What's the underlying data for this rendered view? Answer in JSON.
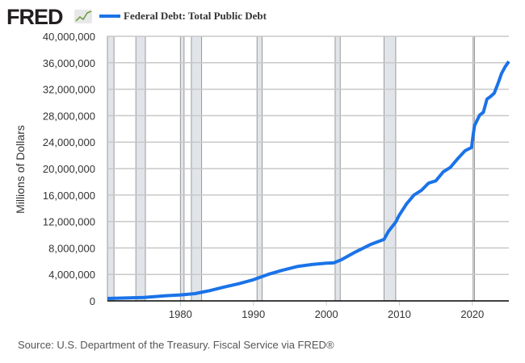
{
  "brand": {
    "logo_text": "FRED"
  },
  "chart_data": {
    "type": "line",
    "title": "Federal Debt: Total Public Debt",
    "legend": [
      {
        "label": "Federal Debt: Total Public Debt",
        "color": "#1a73e8"
      }
    ],
    "legend_placement": "top-left",
    "ylabel": "Millions of Dollars",
    "xlabel": "",
    "xlim": [
      1970,
      2025
    ],
    "ylim": [
      0,
      40000000
    ],
    "grid": true,
    "yticks": [
      0,
      4000000,
      8000000,
      12000000,
      16000000,
      20000000,
      24000000,
      28000000,
      32000000,
      36000000,
      40000000
    ],
    "ytick_labels": [
      "0",
      "4,000,000",
      "8,000,000",
      "12,000,000",
      "16,000,000",
      "20,000,000",
      "24,000,000",
      "28,000,000",
      "32,000,000",
      "36,000,000",
      "40,000,000"
    ],
    "xticks": [
      1980,
      1990,
      2000,
      2010,
      2020
    ],
    "xtick_labels": [
      "1980",
      "1990",
      "2000",
      "2010",
      "2020"
    ],
    "recessions": [
      [
        1969.9,
        1970.9
      ],
      [
        1973.9,
        1975.2
      ],
      [
        1980.0,
        1980.5
      ],
      [
        1981.5,
        1982.9
      ],
      [
        1990.5,
        1991.2
      ],
      [
        2001.2,
        2001.9
      ],
      [
        2007.9,
        2009.5
      ],
      [
        2020.1,
        2020.3
      ]
    ],
    "series": [
      {
        "name": "Federal Debt: Total Public Debt",
        "color": "#1a73e8",
        "x": [
          1970,
          1972,
          1975,
          1978,
          1980,
          1982,
          1984,
          1986,
          1988,
          1990,
          1992,
          1994,
          1996,
          1998,
          2000,
          2001,
          2002,
          2004,
          2006,
          2007.9,
          2008.5,
          2009.5,
          2010,
          2011,
          2012,
          2013,
          2014,
          2015,
          2016,
          2017,
          2018,
          2019,
          2019.9,
          2020.1,
          2020.3,
          2021,
          2021.5,
          2022,
          2022.5,
          2023,
          2023.5,
          2024,
          2024.5,
          2025
        ],
        "y": [
          370000,
          430000,
          530000,
          780000,
          900000,
          1100000,
          1550000,
          2100000,
          2600000,
          3200000,
          4000000,
          4650000,
          5200000,
          5500000,
          5700000,
          5750000,
          6200000,
          7400000,
          8500000,
          9300000,
          10500000,
          11900000,
          13000000,
          14700000,
          16000000,
          16700000,
          17800000,
          18150000,
          19500000,
          20200000,
          21500000,
          22700000,
          23200000,
          25000000,
          26500000,
          28100000,
          28500000,
          30500000,
          30900000,
          31400000,
          32800000,
          34400000,
          35400000,
          36200000
        ]
      }
    ],
    "source": "Source: U.S. Department of the Treasury. Fiscal Service via FRED®"
  }
}
